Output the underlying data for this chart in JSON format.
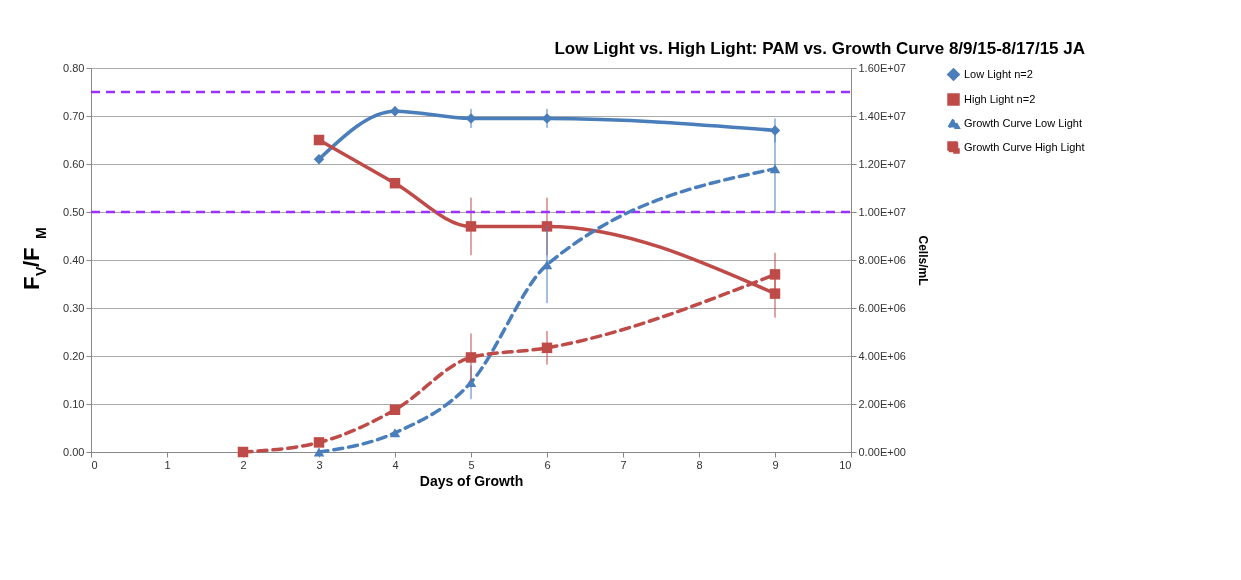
{
  "chart_data": {
    "type": "line",
    "title": "Low Light vs. High Light: PAM vs. Growth Curve 8/9/15-8/17/15 JA",
    "xlabel": "Days of Growth",
    "ylabel": "F$_{V}$/F$_{M}$",
    "y2label": "Cells/mL",
    "xlim": [
      0,
      10
    ],
    "xticks": [
      0,
      1,
      2,
      3,
      4,
      5,
      6,
      7,
      8,
      9,
      10
    ],
    "ylim": [
      0,
      0.8
    ],
    "yticks": [
      {
        "value": 0,
        "label": "0.00"
      },
      {
        "value": 0.1,
        "label": "0.10"
      },
      {
        "value": 0.2,
        "label": "0.20"
      },
      {
        "value": 0.3,
        "label": "0.30"
      },
      {
        "value": 0.4,
        "label": "0.40"
      },
      {
        "value": 0.5,
        "label": "0.50"
      },
      {
        "value": 0.6,
        "label": "0.60"
      },
      {
        "value": 0.7,
        "label": "0.70"
      },
      {
        "value": 0.8,
        "label": "0.80"
      }
    ],
    "y2lim": [
      0,
      16000000
    ],
    "y2ticks": [
      {
        "value": 0,
        "label": "0.00E+00"
      },
      {
        "value": 2000000,
        "label": "2.00E+06"
      },
      {
        "value": 4000000,
        "label": "4.00E+06"
      },
      {
        "value": 6000000,
        "label": "6.00E+06"
      },
      {
        "value": 8000000,
        "label": "8.00E+06"
      },
      {
        "value": 10000000,
        "label": "1.00E+07"
      },
      {
        "value": 12000000,
        "label": "1.20E+07"
      },
      {
        "value": 14000000,
        "label": "1.40E+07"
      },
      {
        "value": 16000000,
        "label": "1.60E+07"
      }
    ],
    "grid": "y",
    "legend": "right",
    "series": [
      {
        "name": "Low Light n=2",
        "color": "#4a7ebb",
        "marker": "diamond",
        "line_style": "solid",
        "x": [
          3,
          4,
          5,
          6,
          9
        ],
        "values": [
          0.61,
          0.71,
          0.695,
          0.695,
          0.67
        ],
        "errors": [
          null,
          0.01,
          0.02,
          0.02,
          0.025
        ]
      },
      {
        "name": "High Light n=2",
        "color": "#be4b48",
        "marker": "square",
        "line_style": "solid",
        "x": [
          3,
          4,
          5,
          6,
          9
        ],
        "values": [
          0.65,
          0.56,
          0.47,
          0.47,
          0.33
        ],
        "errors": [
          null,
          null,
          0.06,
          0.06,
          0.05
        ]
      },
      {
        "name": "Growth Curve Low Light",
        "color": "#4a7ebb",
        "marker": "triangle",
        "line_style": "dashed",
        "axis": "y2",
        "x": [
          3,
          4,
          5,
          6,
          9
        ],
        "values": [
          0,
          800000,
          2900000,
          7800000,
          11800000
        ],
        "errors": [
          null,
          null,
          700000,
          1600000,
          1800000
        ]
      },
      {
        "name": "Growth Curve High Light",
        "color": "#be4b48",
        "marker": "square",
        "line_style": "dashed",
        "axis": "y2",
        "x": [
          2,
          3,
          4,
          5,
          6,
          9
        ],
        "values": [
          0,
          400000,
          1760000,
          3940000,
          4340000,
          7400000
        ],
        "errors": [
          null,
          null,
          null,
          1000000,
          700000,
          900000
        ]
      }
    ],
    "ref_lines": [
      {
        "axis": "y",
        "value": 0.75,
        "color": "#9b30ff",
        "line_style": "dashed"
      },
      {
        "axis": "y",
        "value": 0.5,
        "color": "#9b30ff",
        "line_style": "dashed"
      }
    ]
  }
}
